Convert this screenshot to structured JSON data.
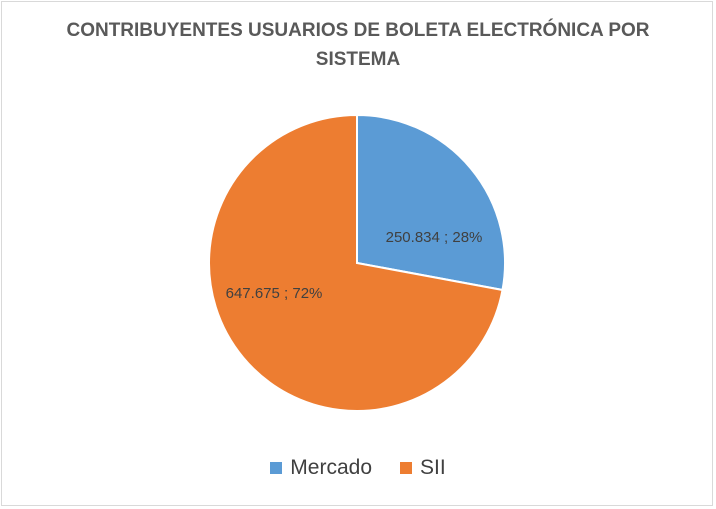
{
  "chart_data": {
    "type": "pie",
    "title": "CONTRIBUYENTES USUARIOS DE BOLETA ELECTRÓNICA POR SISTEMA",
    "categories": [
      "Mercado",
      "SII"
    ],
    "values": [
      250834,
      647675
    ],
    "percent": [
      28,
      72
    ],
    "data_labels": [
      "250.834 ; 28%",
      "647.675 ; 72%"
    ],
    "colors": [
      "#5b9bd5",
      "#ed7d31"
    ],
    "legend_position": "bottom",
    "start_angle": "top, clockwise"
  }
}
